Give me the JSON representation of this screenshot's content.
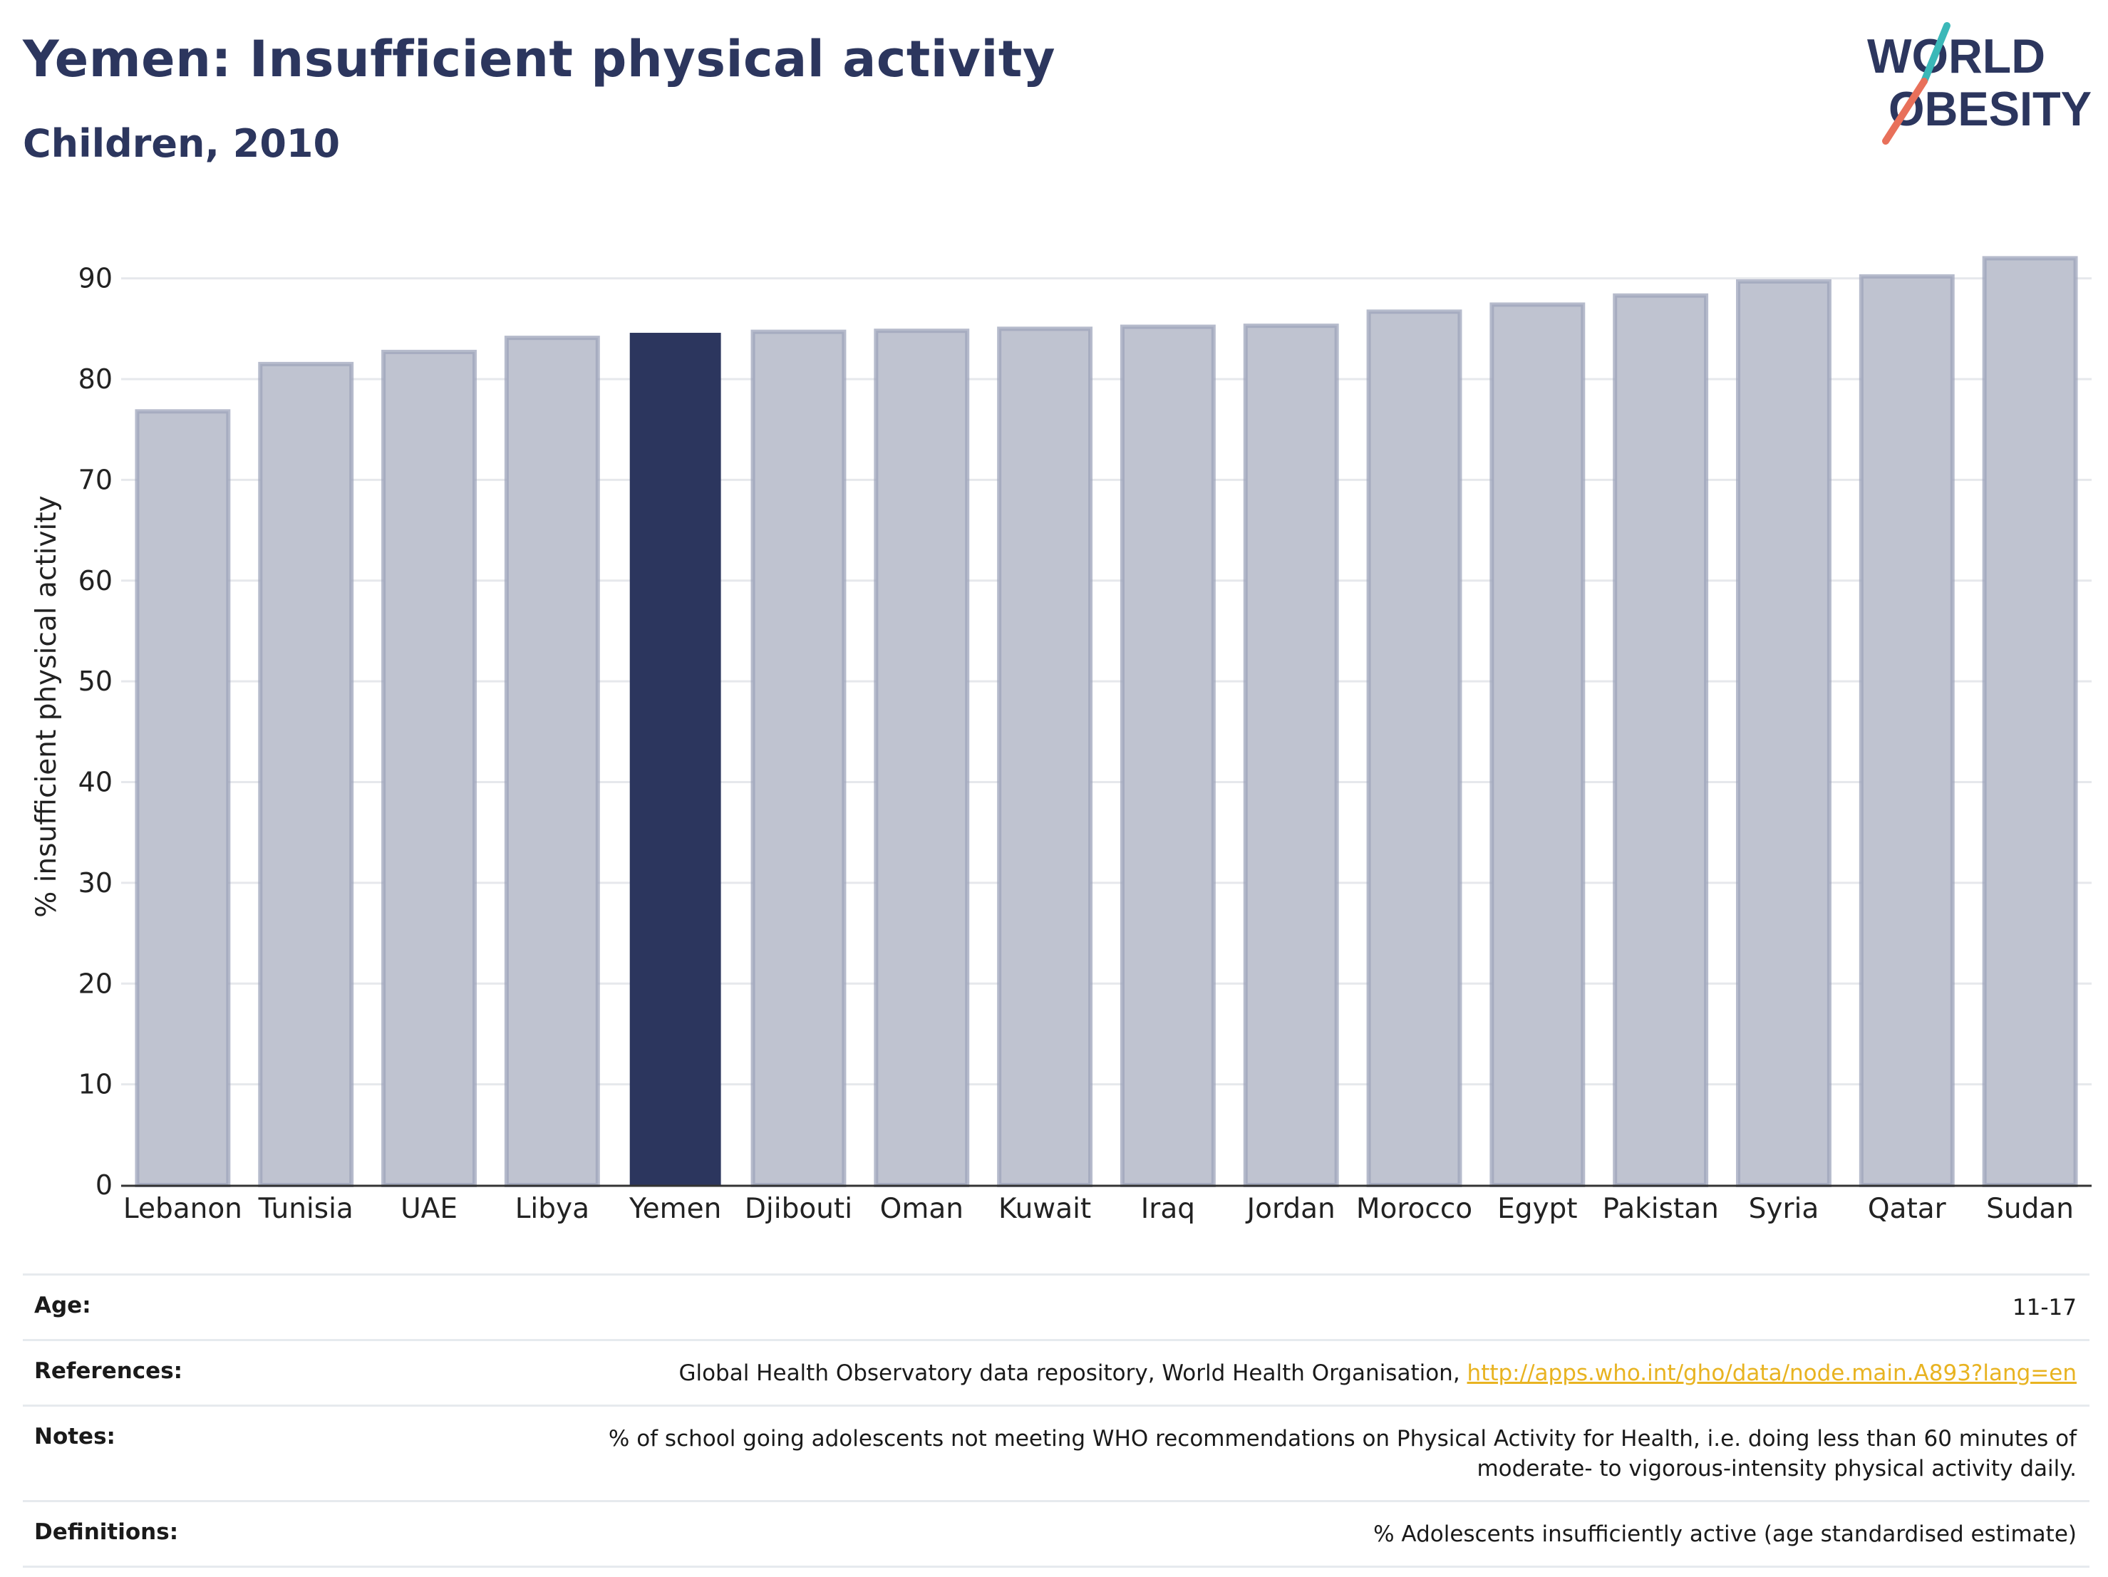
{
  "header": {
    "title": "Yemen: Insufficient physical activity",
    "subtitle": "Children, 2010"
  },
  "logo": {
    "line1": "WORLD",
    "line2": "OBESITY",
    "colors": {
      "text": "#2c365e",
      "slash_teal": "#3bb8b8",
      "slash_coral": "#e8705a"
    }
  },
  "chart_data": {
    "type": "bar",
    "title": "",
    "ylabel": "% insufficient physical activity",
    "xlabel": "",
    "ylim": [
      0,
      95
    ],
    "yticks": [
      0,
      10,
      20,
      30,
      40,
      50,
      60,
      70,
      80,
      90
    ],
    "grid": true,
    "highlight": "Yemen",
    "categories": [
      "Lebanon",
      "Tunisia",
      "UAE",
      "Libya",
      "Yemen",
      "Djibouti",
      "Oman",
      "Kuwait",
      "Iraq",
      "Jordan",
      "Morocco",
      "Egypt",
      "Pakistan",
      "Syria",
      "Qatar",
      "Sudan"
    ],
    "values": [
      76.8,
      81.5,
      82.7,
      84.1,
      84.6,
      84.7,
      84.8,
      85.0,
      85.2,
      85.3,
      86.7,
      87.4,
      88.3,
      89.7,
      90.2,
      92.0
    ],
    "colors": {
      "highlight_fill": "#2c365e",
      "bar_fill": "#bfc3d0",
      "bar_stroke": "#9ea4bb"
    }
  },
  "meta": {
    "age_label": "Age:",
    "age_value": "11-17",
    "references_label": "References:",
    "references_text": "Global Health Observatory data repository, World Health Organisation, ",
    "references_link": "http://apps.who.int/gho/data/node.main.A893?lang=en",
    "notes_label": "Notes:",
    "notes_line1": "% of school going adolescents not meeting WHO recommendations on Physical Activity for Health, i.e. doing less than 60 minutes of",
    "notes_line2": "moderate- to vigorous-intensity physical activity daily.",
    "definitions_label": "Definitions:",
    "definitions_value": "% Adolescents insufficiently active (age standardised estimate)"
  }
}
